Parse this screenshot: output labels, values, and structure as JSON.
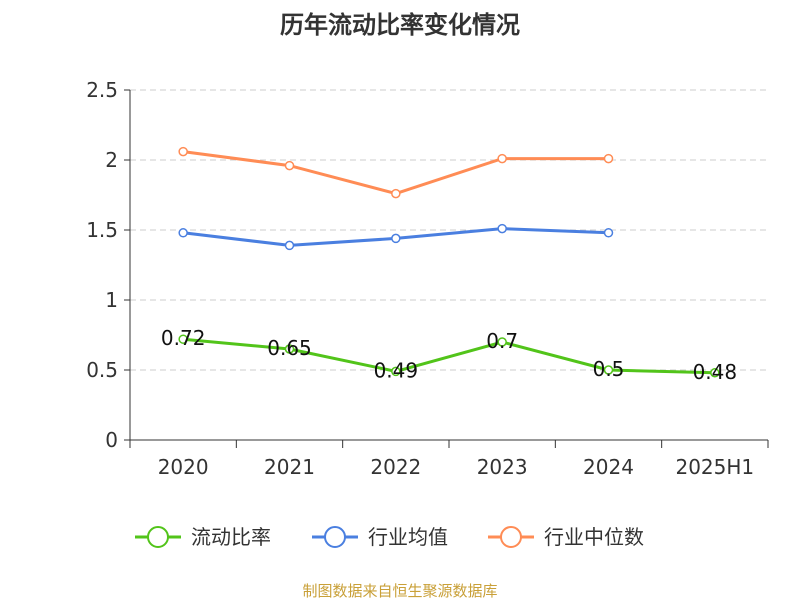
{
  "chart_data": {
    "type": "line",
    "title": "历年流动比率变化情况",
    "categories": [
      "2020",
      "2021",
      "2022",
      "2023",
      "2024",
      "2025H1"
    ],
    "ylim": [
      0,
      2.5
    ],
    "yticks": [
      "0",
      "0.5",
      "1",
      "1.5",
      "2",
      "2.5"
    ],
    "grid": true,
    "legend_placement": "bottom",
    "series": [
      {
        "name": "流动比率",
        "color": "#52c41a",
        "values": [
          0.72,
          0.65,
          0.49,
          0.7,
          0.5,
          0.48
        ],
        "labels": [
          "0.72",
          "0.65",
          "0.49",
          "0.7",
          "0.5",
          "0.48"
        ]
      },
      {
        "name": "行业均值",
        "color": "#4a7fe0",
        "values": [
          1.48,
          1.39,
          1.44,
          1.51,
          1.48,
          null
        ]
      },
      {
        "name": "行业中位数",
        "color": "#ff8c55",
        "values": [
          2.06,
          1.96,
          1.76,
          2.01,
          2.01,
          null
        ]
      }
    ]
  },
  "footer": "制图数据来自恒生聚源数据库"
}
